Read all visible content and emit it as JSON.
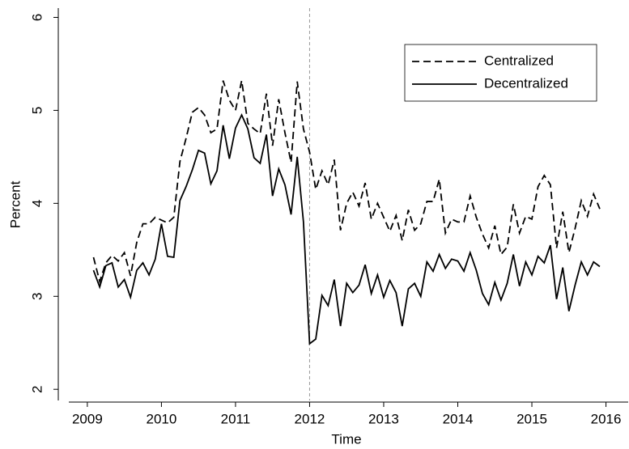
{
  "chart_data": {
    "type": "line",
    "xlabel": "Time",
    "ylabel": "Percent",
    "x": [
      2009.083,
      2009.167,
      2009.25,
      2009.333,
      2009.417,
      2009.5,
      2009.583,
      2009.667,
      2009.75,
      2009.833,
      2009.917,
      2010,
      2010.083,
      2010.167,
      2010.25,
      2010.333,
      2010.417,
      2010.5,
      2010.583,
      2010.667,
      2010.75,
      2010.833,
      2010.917,
      2011,
      2011.083,
      2011.167,
      2011.25,
      2011.333,
      2011.417,
      2011.5,
      2011.583,
      2011.667,
      2011.75,
      2011.833,
      2011.917,
      2012,
      2012.083,
      2012.167,
      2012.25,
      2012.333,
      2012.417,
      2012.5,
      2012.583,
      2012.667,
      2012.75,
      2012.833,
      2012.917,
      2013,
      2013.083,
      2013.167,
      2013.25,
      2013.333,
      2013.417,
      2013.5,
      2013.583,
      2013.667,
      2013.75,
      2013.833,
      2013.917,
      2014,
      2014.083,
      2014.167,
      2014.25,
      2014.333,
      2014.417,
      2014.5,
      2014.583,
      2014.667,
      2014.75,
      2014.833,
      2014.917,
      2015,
      2015.083,
      2015.167,
      2015.25,
      2015.333,
      2015.417,
      2015.5,
      2015.583,
      2015.667,
      2015.75,
      2015.833,
      2015.917
    ],
    "series": [
      {
        "name": "Centralized",
        "color": "#000000",
        "dash": true,
        "values": [
          3.42,
          3.16,
          3.36,
          3.44,
          3.38,
          3.47,
          3.22,
          3.58,
          3.78,
          3.78,
          3.85,
          3.82,
          3.79,
          3.85,
          4.45,
          4.7,
          4.98,
          5.03,
          4.95,
          4.76,
          4.8,
          5.32,
          5.11,
          5.0,
          5.32,
          4.86,
          4.8,
          4.75,
          5.18,
          4.62,
          5.12,
          4.76,
          4.44,
          5.31,
          4.8,
          4.55,
          4.15,
          4.35,
          4.2,
          4.47,
          3.71,
          4.0,
          4.12,
          3.97,
          4.22,
          3.83,
          4.0,
          3.85,
          3.7,
          3.87,
          3.6,
          3.93,
          3.71,
          3.78,
          4.02,
          4.02,
          4.26,
          3.68,
          3.83,
          3.8,
          3.8,
          4.08,
          3.85,
          3.67,
          3.52,
          3.76,
          3.45,
          3.53,
          3.99,
          3.68,
          3.86,
          3.83,
          4.18,
          4.3,
          4.2,
          3.52,
          3.91,
          3.47,
          3.73,
          4.03,
          3.86,
          4.1,
          3.94
        ]
      },
      {
        "name": "Decentralized",
        "color": "#000000",
        "dash": false,
        "values": [
          3.28,
          3.1,
          3.33,
          3.36,
          3.1,
          3.18,
          2.99,
          3.28,
          3.36,
          3.23,
          3.4,
          3.78,
          3.43,
          3.42,
          4.03,
          4.18,
          4.36,
          4.57,
          4.54,
          4.21,
          4.35,
          4.84,
          4.48,
          4.81,
          4.95,
          4.8,
          4.49,
          4.43,
          4.74,
          4.08,
          4.37,
          4.2,
          3.88,
          4.5,
          3.8,
          2.49,
          2.54,
          3.01,
          2.9,
          3.18,
          2.68,
          3.14,
          3.04,
          3.12,
          3.34,
          3.03,
          3.23,
          2.99,
          3.17,
          3.04,
          2.68,
          3.08,
          3.14,
          3.0,
          3.37,
          3.27,
          3.45,
          3.3,
          3.4,
          3.38,
          3.27,
          3.47,
          3.28,
          3.03,
          2.91,
          3.15,
          2.96,
          3.14,
          3.45,
          3.11,
          3.37,
          3.23,
          3.43,
          3.36,
          3.55,
          2.97,
          3.31,
          2.84,
          3.12,
          3.37,
          3.23,
          3.37,
          3.32
        ]
      }
    ],
    "vline": 2012,
    "xlim": [
      2008.75,
      2016.3
    ],
    "xticks": [
      2009,
      2010,
      2011,
      2012,
      2013,
      2014,
      2015,
      2016
    ],
    "ylim": [
      1.88,
      6.1
    ],
    "yticks": [
      2,
      3,
      4,
      5,
      6
    ],
    "legend": "top right",
    "grid": false
  }
}
